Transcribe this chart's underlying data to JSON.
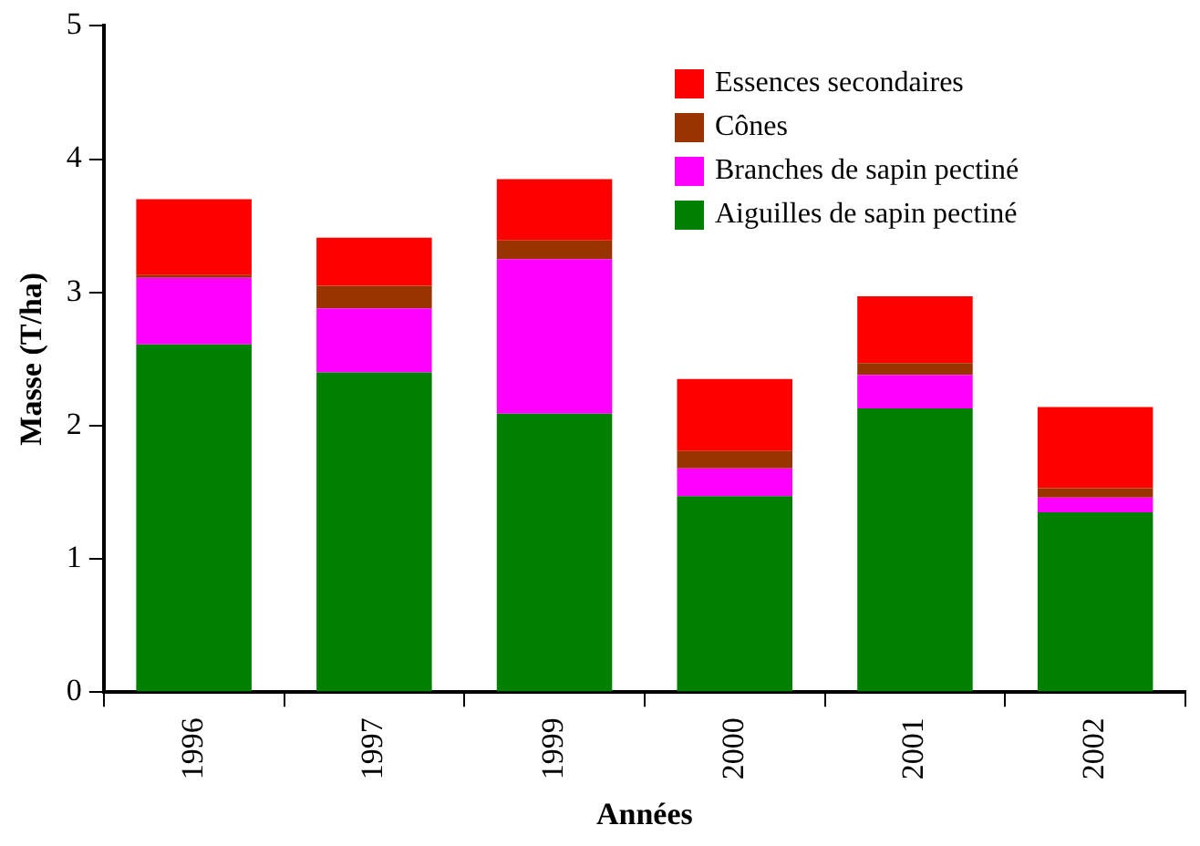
{
  "chart_data": {
    "type": "bar",
    "stacked": true,
    "xlabel": "Années",
    "ylabel": "Masse (T/ha)",
    "categories": [
      "1996",
      "1997",
      "1999",
      "2000",
      "2001",
      "2002"
    ],
    "series": [
      {
        "name": "Aiguilles de sapin pectiné",
        "color": "#008000",
        "values": [
          2.61,
          2.4,
          2.09,
          1.47,
          2.13,
          1.35
        ]
      },
      {
        "name": "Branches de sapin pectiné",
        "color": "#ff00ff",
        "values": [
          0.5,
          0.48,
          1.16,
          0.21,
          0.25,
          0.11
        ]
      },
      {
        "name": "Cônes",
        "color": "#993300",
        "values": [
          0.02,
          0.17,
          0.14,
          0.13,
          0.09,
          0.07
        ]
      },
      {
        "name": "Essences secondaires",
        "color": "#ff0000",
        "values": [
          0.57,
          0.36,
          0.46,
          0.54,
          0.5,
          0.61
        ]
      }
    ],
    "ylim": [
      0,
      5
    ],
    "yticks": [
      0,
      1,
      2,
      3,
      4,
      5
    ],
    "grid": false,
    "legend": "top right"
  }
}
